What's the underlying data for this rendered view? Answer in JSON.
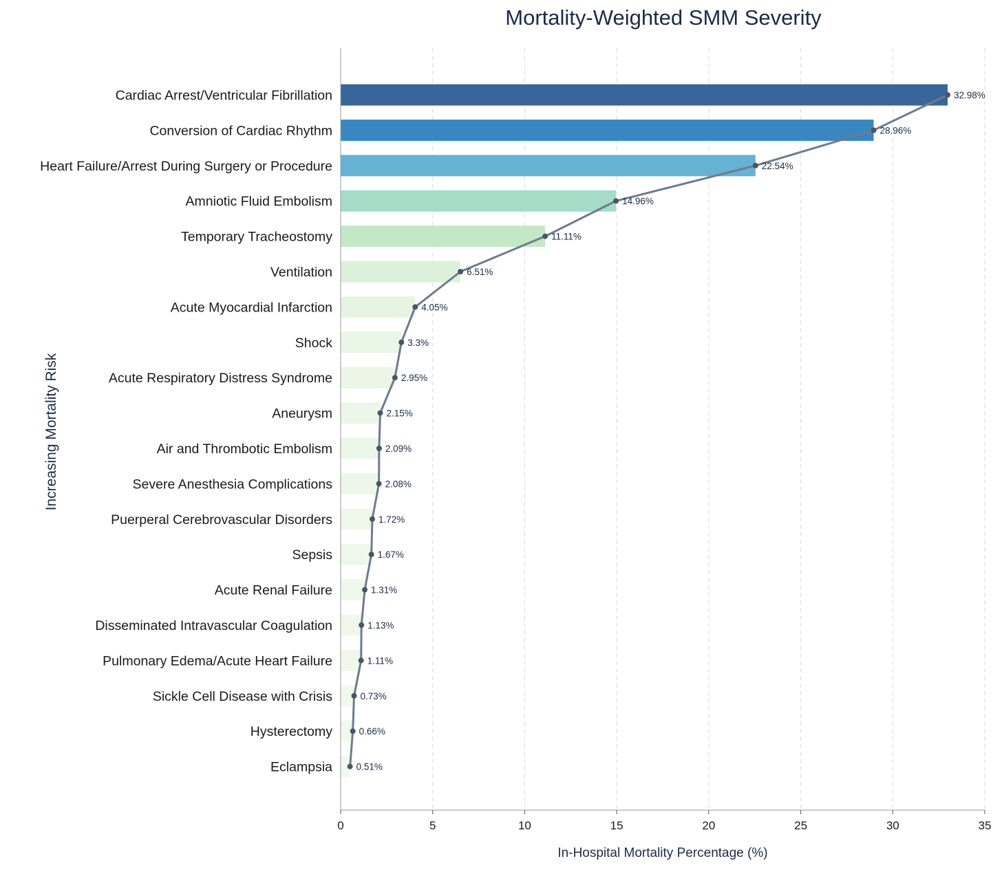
{
  "chart_data": {
    "type": "bar",
    "orientation": "horizontal",
    "title": "Mortality-Weighted SMM Severity",
    "xlabel": "In-Hospital Mortality Percentage (%)",
    "ylabel": "Increasing Mortality Risk",
    "xlim": [
      0,
      35
    ],
    "xticks": [
      0,
      5,
      10,
      15,
      20,
      25,
      30,
      35
    ],
    "grid": "vertical dashed",
    "categories": [
      "Cardiac Arrest/Ventricular Fibrillation",
      "Conversion of Cardiac Rhythm",
      "Heart Failure/Arrest During Surgery or Procedure",
      "Amniotic Fluid Embolism",
      "Temporary Tracheostomy",
      "Ventilation",
      "Acute Myocardial Infarction",
      "Shock",
      "Acute Respiratory Distress Syndrome",
      "Aneurysm",
      "Air and Thrombotic Embolism",
      "Severe Anesthesia Complications",
      "Puerperal Cerebrovascular Disorders",
      "Sepsis",
      "Acute Renal Failure",
      "Disseminated Intravascular Coagulation",
      "Pulmonary Edema/Acute Heart Failure",
      "Sickle Cell Disease with Crisis",
      "Hysterectomy",
      "Eclampsia"
    ],
    "values": [
      32.98,
      28.96,
      22.54,
      14.96,
      11.11,
      6.51,
      4.05,
      3.3,
      2.95,
      2.15,
      2.09,
      2.08,
      1.72,
      1.67,
      1.31,
      1.13,
      1.11,
      0.73,
      0.66,
      0.51
    ],
    "data_labels": [
      "32.98%",
      "28.96%",
      "22.54%",
      "14.96%",
      "11.11%",
      "6.51%",
      "4.05%",
      "3.3%",
      "2.95%",
      "2.15%",
      "2.09%",
      "2.08%",
      "1.72%",
      "1.67%",
      "1.31%",
      "1.13%",
      "1.11%",
      "0.73%",
      "0.66%",
      "0.51%"
    ],
    "bar_colors": [
      "#3a659a",
      "#3a87bf",
      "#66b2d4",
      "#a4dcc8",
      "#c4e8c6",
      "#ddf1da",
      "#e6f5e2",
      "#eaf6e6",
      "#ebf6e7",
      "#edf7e9",
      "#edf7e9",
      "#edf7e9",
      "#eef8ea",
      "#eef8ea",
      "#eff8eb",
      "#eff8eb",
      "#eff8eb",
      "#f0f9ec",
      "#f0f9ec",
      "#f0f9ec"
    ],
    "line": {
      "color": "#6e7b8b",
      "marker_color": "#4a5563"
    }
  }
}
